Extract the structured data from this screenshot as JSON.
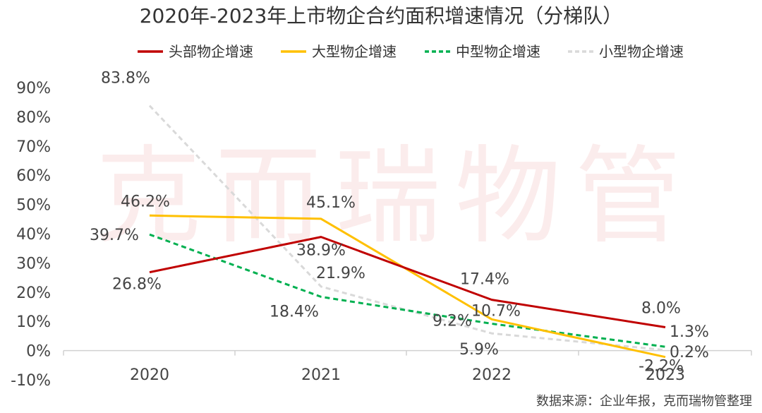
{
  "chart_data": {
    "type": "line",
    "title": "2020年-2023年上市物企合约面积增速情况（分梯队）",
    "categories": [
      "2020",
      "2021",
      "2022",
      "2023"
    ],
    "y_ticks": [
      "90%",
      "80%",
      "70%",
      "60%",
      "50%",
      "40%",
      "30%",
      "20%",
      "10%",
      "0%",
      "-10%"
    ],
    "ylim": [
      -10,
      90
    ],
    "xlabel": "",
    "ylabel": "",
    "grid": false,
    "legend_position": "top-center",
    "series": [
      {
        "name": "头部物企增速",
        "values": [
          26.8,
          38.9,
          17.4,
          8.0
        ],
        "labels": [
          "26.8%",
          "38.9%",
          "17.4%",
          "8.0%"
        ],
        "color": "#c00000",
        "dash": "solid"
      },
      {
        "name": "大型物企增速",
        "values": [
          46.2,
          45.1,
          10.7,
          -2.2
        ],
        "labels": [
          "46.2%",
          "45.1%",
          "10.7%",
          "-2.2%"
        ],
        "color": "#ffc000",
        "dash": "solid"
      },
      {
        "name": "中型物企增速",
        "values": [
          39.7,
          18.4,
          9.2,
          1.3
        ],
        "labels": [
          "39.7%",
          "18.4%",
          "9.2%",
          "1.3%"
        ],
        "color": "#00b050",
        "dash": "dashed"
      },
      {
        "name": "小型物企增速",
        "values": [
          83.8,
          21.9,
          5.9,
          0.2
        ],
        "labels": [
          "83.8%",
          "21.9%",
          "5.9%",
          "0.2%"
        ],
        "color": "#d9d9d9",
        "dash": "dashed"
      }
    ],
    "watermark": "克而瑞物管",
    "source_note": "数据来源：企业年报，克而瑞物管整理"
  }
}
